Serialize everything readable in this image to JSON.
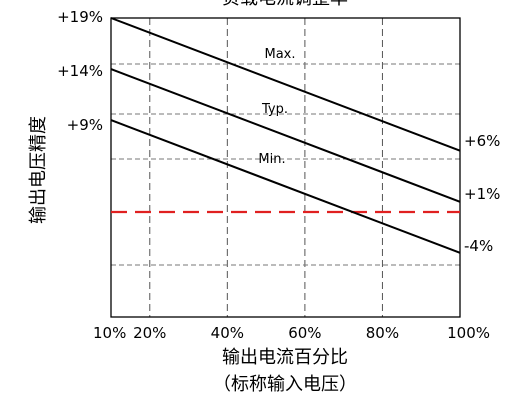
{
  "chart_data": {
    "type": "line",
    "title": "负载电流调整率",
    "xlabel": "输出电流百分比",
    "xlabel_sub": "（标称输入电压）",
    "ylabel": "输出电压精度",
    "xlim": [
      10,
      100
    ],
    "x_tick_labels": [
      "10%",
      "20%",
      "40%",
      "60%",
      "80%",
      "100%"
    ],
    "x_ticks": [
      10,
      20,
      40,
      60,
      80,
      100
    ],
    "grid": true,
    "series": [
      {
        "name": "Max.",
        "x": [
          10,
          100
        ],
        "y": [
          19,
          6
        ],
        "start_label": "+19%",
        "end_label": "+6%",
        "color": "#000000"
      },
      {
        "name": "Typ.",
        "x": [
          10,
          100
        ],
        "y": [
          14,
          1
        ],
        "start_label": "+14%",
        "end_label": "+1%",
        "color": "#000000"
      },
      {
        "name": "Min.",
        "x": [
          10,
          100
        ],
        "y": [
          9,
          -4
        ],
        "start_label": "+9%",
        "end_label": "-4%",
        "color": "#000000"
      }
    ],
    "reference_line": {
      "y": 0,
      "style": "dashed",
      "color": "#e02020"
    }
  }
}
